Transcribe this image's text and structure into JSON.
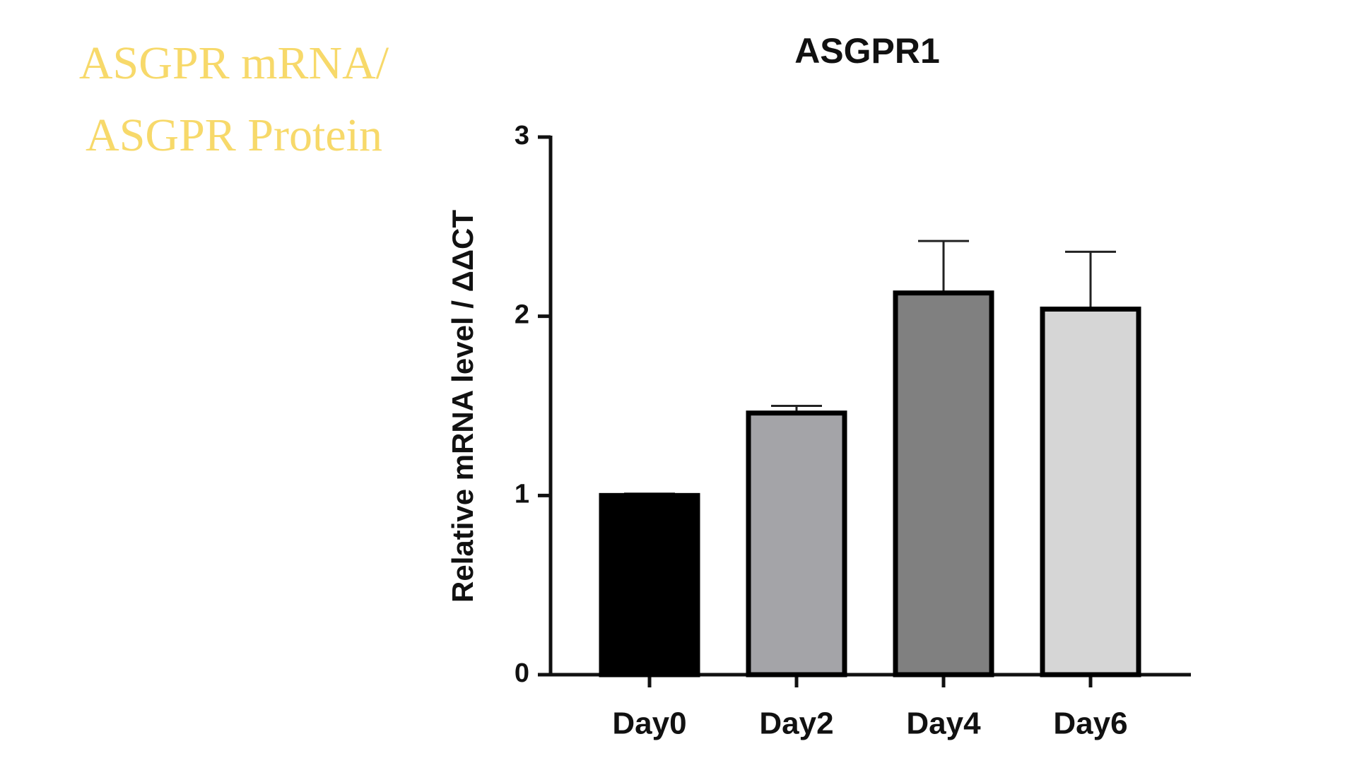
{
  "heading": [
    "ASGPR mRNA/",
    "ASGPR Protein"
  ],
  "chart_data": {
    "type": "bar",
    "title": "ASGPR1",
    "y_label": "Relative mRNA level / ΔΔCT",
    "categories": [
      "Day0",
      "Day2",
      "Day4",
      "Day6"
    ],
    "values": [
      1.0,
      1.46,
      2.13,
      2.04
    ],
    "errors": [
      0.01,
      0.04,
      0.29,
      0.32
    ],
    "colors": [
      "#000000",
      "#a4a4a8",
      "#808080",
      "#d6d6d6"
    ],
    "ylim": [
      0,
      3
    ],
    "yticks": [
      0,
      1,
      2,
      3
    ]
  }
}
